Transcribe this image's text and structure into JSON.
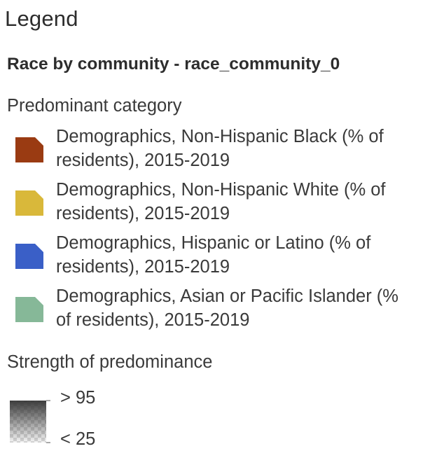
{
  "legend": {
    "title": "Legend",
    "layer_title": "Race by community - race_community_0",
    "category_section_label": "Predominant category",
    "categories": [
      {
        "label": "Demographics, Non-Hispanic Black (% of residents), 2015-2019",
        "color": "#9a3b12"
      },
      {
        "label": "Demographics, Non-Hispanic White (% of residents), 2015-2019",
        "color": "#d9b83a"
      },
      {
        "label": "Demographics, Hispanic or Latino (% of residents), 2015-2019",
        "color": "#3a5fc7"
      },
      {
        "label": "Demographics, Asian or Pacific Islander (% of residents), 2015-2019",
        "color": "#86b898"
      }
    ],
    "strength_section_label": "Strength of predominance",
    "strength_high_label": "> 95",
    "strength_low_label": "< 25",
    "ramp_color": "#333333"
  }
}
